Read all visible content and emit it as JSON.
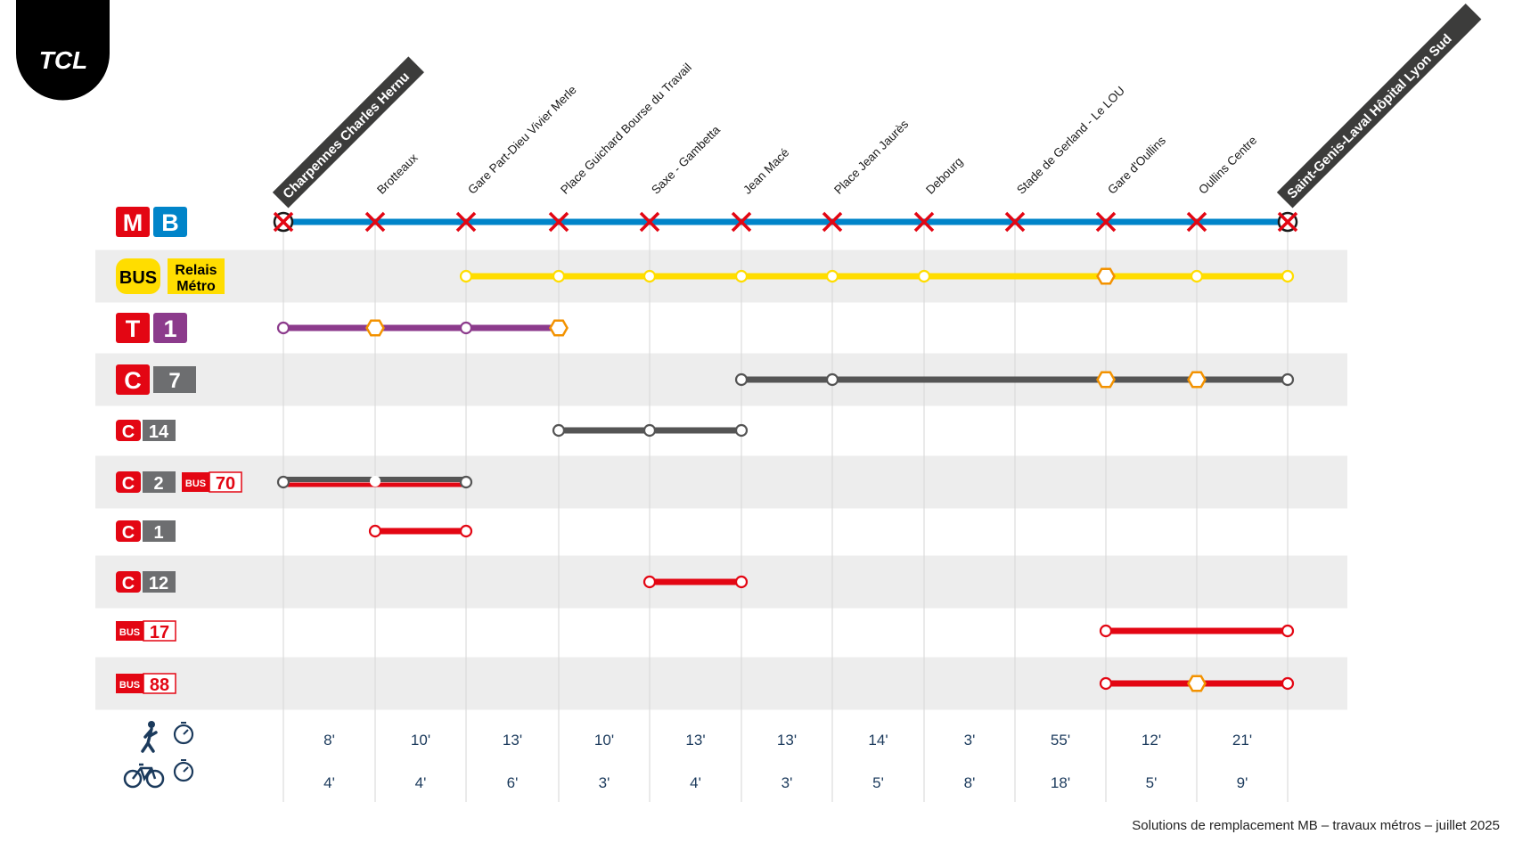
{
  "brand": {
    "logo_text": "TCL",
    "logo_color": "#000000"
  },
  "stations": [
    {
      "name": "Charpennes Charles Hernu",
      "terminus": true
    },
    {
      "name": "Brotteaux",
      "terminus": false
    },
    {
      "name": "Gare Part-Dieu Vivier Merle",
      "terminus": false
    },
    {
      "name": "Place Guichard Bourse du Travail",
      "terminus": false
    },
    {
      "name": "Saxe - Gambetta",
      "terminus": false
    },
    {
      "name": "Jean Macé",
      "terminus": false
    },
    {
      "name": "Place Jean Jaurès",
      "terminus": false
    },
    {
      "name": "Debourg",
      "terminus": false
    },
    {
      "name": "Stade de Gerland - Le LOU",
      "terminus": false
    },
    {
      "name": "Gare d'Oullins",
      "terminus": false
    },
    {
      "name": "Oullins Centre",
      "terminus": false
    },
    {
      "name": "Saint-Genis-Laval Hôpital Lyon Sud",
      "terminus": true
    }
  ],
  "lines": [
    {
      "id": "MB",
      "badges": [
        {
          "kind": "square",
          "text": "M",
          "bg": "#e30613",
          "fg": "#ffffff"
        },
        {
          "kind": "square",
          "text": "B",
          "bg": "#0084c9",
          "fg": "#ffffff"
        }
      ],
      "color": "#0084c9",
      "from": 0,
      "to": 11,
      "closed": true,
      "stops": []
    },
    {
      "id": "BUS-RM",
      "badges": [
        {
          "kind": "pill",
          "text": "BUS",
          "bg": "#ffdd00",
          "fg": "#000000"
        },
        {
          "kind": "box2",
          "text": "Relais",
          "text2": "Métro",
          "bg": "#ffdd00",
          "fg": "#000000"
        }
      ],
      "color": "#ffdd00",
      "from": 2,
      "to": 11,
      "stops": [
        {
          "i": 2,
          "t": "o"
        },
        {
          "i": 3,
          "t": "o"
        },
        {
          "i": 4,
          "t": "o"
        },
        {
          "i": 5,
          "t": "o"
        },
        {
          "i": 6,
          "t": "o"
        },
        {
          "i": 7,
          "t": "o"
        },
        {
          "i": 9,
          "t": "h"
        },
        {
          "i": 10,
          "t": "o"
        },
        {
          "i": 11,
          "t": "o"
        }
      ]
    },
    {
      "id": "T1",
      "badges": [
        {
          "kind": "square",
          "text": "T",
          "bg": "#e30613",
          "fg": "#ffffff"
        },
        {
          "kind": "square",
          "text": "1",
          "bg": "#8c3b8c",
          "fg": "#ffffff"
        }
      ],
      "color": "#8c3b8c",
      "from": 0,
      "to": 3,
      "stops": [
        {
          "i": 0,
          "t": "o"
        },
        {
          "i": 1,
          "t": "h"
        },
        {
          "i": 2,
          "t": "o"
        },
        {
          "i": 3,
          "t": "h"
        }
      ]
    },
    {
      "id": "C7",
      "badges": [
        {
          "kind": "square",
          "text": "C",
          "bg": "#e30613",
          "fg": "#ffffff"
        },
        {
          "kind": "wide",
          "text": "7",
          "bg": "#6d6e70",
          "fg": "#ffffff"
        }
      ],
      "color": "#555555",
      "from": 5,
      "to": 11,
      "stops": [
        {
          "i": 5,
          "t": "o"
        },
        {
          "i": 6,
          "t": "o"
        },
        {
          "i": 9,
          "t": "h"
        },
        {
          "i": 10,
          "t": "h"
        },
        {
          "i": 11,
          "t": "o"
        }
      ]
    },
    {
      "id": "C14",
      "badges": [
        {
          "kind": "small",
          "text": "C",
          "bg": "#e30613",
          "fg": "#ffffff"
        },
        {
          "kind": "smallwide",
          "text": "14",
          "bg": "#6d6e70",
          "fg": "#ffffff"
        }
      ],
      "color": "#555555",
      "from": 3,
      "to": 5,
      "stops": [
        {
          "i": 3,
          "t": "o"
        },
        {
          "i": 4,
          "t": "o"
        },
        {
          "i": 5,
          "t": "o"
        }
      ]
    },
    {
      "id": "C2-BUS70",
      "badges": [
        {
          "kind": "small",
          "text": "C",
          "bg": "#e30613",
          "fg": "#ffffff"
        },
        {
          "kind": "smallwide",
          "text": "2",
          "bg": "#6d6e70",
          "fg": "#ffffff"
        },
        {
          "kind": "bus",
          "text": "BUS",
          "text2": "70",
          "bg": "#e30613",
          "fg": "#ffffff"
        }
      ],
      "color": "#555555",
      "color2": "#e30613",
      "from": 0,
      "to": 2,
      "stops": [
        {
          "i": 0,
          "t": "o"
        },
        {
          "i": 1,
          "t": "w"
        },
        {
          "i": 2,
          "t": "o"
        }
      ]
    },
    {
      "id": "C1",
      "badges": [
        {
          "kind": "small",
          "text": "C",
          "bg": "#e30613",
          "fg": "#ffffff"
        },
        {
          "kind": "smallwide",
          "text": "1",
          "bg": "#6d6e70",
          "fg": "#ffffff"
        }
      ],
      "color": "#e30613",
      "from": 1,
      "to": 2,
      "stops": [
        {
          "i": 1,
          "t": "o"
        },
        {
          "i": 2,
          "t": "o"
        }
      ]
    },
    {
      "id": "C12",
      "badges": [
        {
          "kind": "small",
          "text": "C",
          "bg": "#e30613",
          "fg": "#ffffff"
        },
        {
          "kind": "smallwide",
          "text": "12",
          "bg": "#6d6e70",
          "fg": "#ffffff"
        }
      ],
      "color": "#e30613",
      "from": 4,
      "to": 5,
      "stops": [
        {
          "i": 4,
          "t": "o"
        },
        {
          "i": 5,
          "t": "o"
        }
      ]
    },
    {
      "id": "BUS17",
      "badges": [
        {
          "kind": "bus",
          "text": "BUS",
          "text2": "17",
          "bg": "#e30613",
          "fg": "#ffffff"
        }
      ],
      "color": "#e30613",
      "from": 9,
      "to": 11,
      "stops": [
        {
          "i": 9,
          "t": "o"
        },
        {
          "i": 11,
          "t": "o"
        }
      ]
    },
    {
      "id": "BUS88",
      "badges": [
        {
          "kind": "bus",
          "text": "BUS",
          "text2": "88",
          "bg": "#e30613",
          "fg": "#ffffff"
        }
      ],
      "color": "#e30613",
      "from": 9,
      "to": 11,
      "stops": [
        {
          "i": 9,
          "t": "o"
        },
        {
          "i": 10,
          "t": "h"
        },
        {
          "i": 11,
          "t": "o"
        }
      ]
    }
  ],
  "times": {
    "walk_icon": "pedestrian-icon",
    "bike_icon": "bicycle-icon",
    "timer_icon": "stopwatch-icon",
    "walk": [
      "8'",
      "10'",
      "13'",
      "10'",
      "13'",
      "13'",
      "14'",
      "3'",
      "55'",
      "12'",
      "21'"
    ],
    "bike": [
      "4'",
      "4'",
      "6'",
      "3'",
      "4'",
      "3'",
      "5'",
      "8'",
      "18'",
      "5'",
      "9'"
    ]
  },
  "footer": "Solutions de remplacement MB – travaux métros – juillet 2025",
  "colors": {
    "closed_cross": "#e30613",
    "hexagon_stop": "#f39200",
    "band": "#ededed",
    "time_text": "#1b3a5c"
  }
}
